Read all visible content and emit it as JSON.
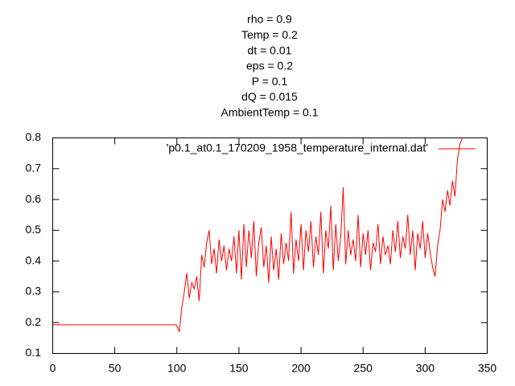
{
  "chart_data": {
    "type": "line",
    "title": [
      "rho = 0.9",
      "Temp = 0.2",
      "dt = 0.01",
      "eps = 0.2",
      "P = 0.1",
      "dQ = 0.015",
      "AmbientTemp = 0.1"
    ],
    "xlim": [
      0,
      350
    ],
    "xticks": [
      0,
      50,
      100,
      150,
      200,
      250,
      300,
      350
    ],
    "ylim": [
      0.1,
      0.8
    ],
    "yticks": [
      0.1,
      0.2,
      0.3,
      0.4,
      0.5,
      0.6,
      0.7,
      0.8
    ],
    "legend": "top-right",
    "series": [
      {
        "name": "'p0.1_at0.1_170209_1958_temperature_internal.dat'",
        "color": "#ff0000",
        "x": [
          0,
          99,
          100,
          102,
          104,
          106,
          108,
          110,
          112,
          114,
          116,
          118,
          120,
          122,
          124,
          126,
          128,
          130,
          132,
          134,
          136,
          138,
          140,
          142,
          144,
          146,
          148,
          150,
          152,
          154,
          156,
          158,
          160,
          162,
          164,
          166,
          168,
          170,
          172,
          174,
          176,
          178,
          180,
          182,
          184,
          186,
          188,
          190,
          192,
          194,
          196,
          198,
          200,
          202,
          204,
          206,
          208,
          210,
          212,
          214,
          216,
          218,
          220,
          222,
          224,
          226,
          228,
          230,
          232,
          234,
          236,
          238,
          240,
          242,
          244,
          246,
          248,
          250,
          252,
          254,
          256,
          258,
          260,
          262,
          264,
          266,
          268,
          270,
          272,
          274,
          276,
          278,
          280,
          282,
          284,
          286,
          288,
          290,
          292,
          294,
          296,
          298,
          300,
          302,
          304,
          306,
          308,
          310,
          312,
          314,
          316,
          318,
          320,
          322,
          324,
          326,
          328,
          330
        ],
        "values": [
          0.193,
          0.193,
          0.19,
          0.17,
          0.25,
          0.3,
          0.36,
          0.28,
          0.33,
          0.31,
          0.35,
          0.27,
          0.42,
          0.38,
          0.46,
          0.5,
          0.39,
          0.44,
          0.36,
          0.47,
          0.4,
          0.45,
          0.37,
          0.44,
          0.4,
          0.48,
          0.36,
          0.5,
          0.34,
          0.52,
          0.38,
          0.5,
          0.41,
          0.53,
          0.35,
          0.46,
          0.51,
          0.38,
          0.45,
          0.33,
          0.48,
          0.37,
          0.44,
          0.34,
          0.49,
          0.39,
          0.46,
          0.4,
          0.56,
          0.36,
          0.47,
          0.4,
          0.52,
          0.37,
          0.5,
          0.43,
          0.53,
          0.38,
          0.48,
          0.42,
          0.56,
          0.36,
          0.5,
          0.44,
          0.58,
          0.37,
          0.52,
          0.4,
          0.48,
          0.64,
          0.39,
          0.5,
          0.42,
          0.47,
          0.4,
          0.55,
          0.38,
          0.49,
          0.42,
          0.5,
          0.37,
          0.46,
          0.43,
          0.52,
          0.39,
          0.48,
          0.42,
          0.45,
          0.39,
          0.5,
          0.43,
          0.53,
          0.41,
          0.48,
          0.44,
          0.55,
          0.42,
          0.5,
          0.37,
          0.49,
          0.44,
          0.53,
          0.41,
          0.49,
          0.43,
          0.38,
          0.35,
          0.45,
          0.5,
          0.6,
          0.56,
          0.63,
          0.58,
          0.66,
          0.61,
          0.73,
          0.78,
          0.8
        ]
      }
    ]
  }
}
